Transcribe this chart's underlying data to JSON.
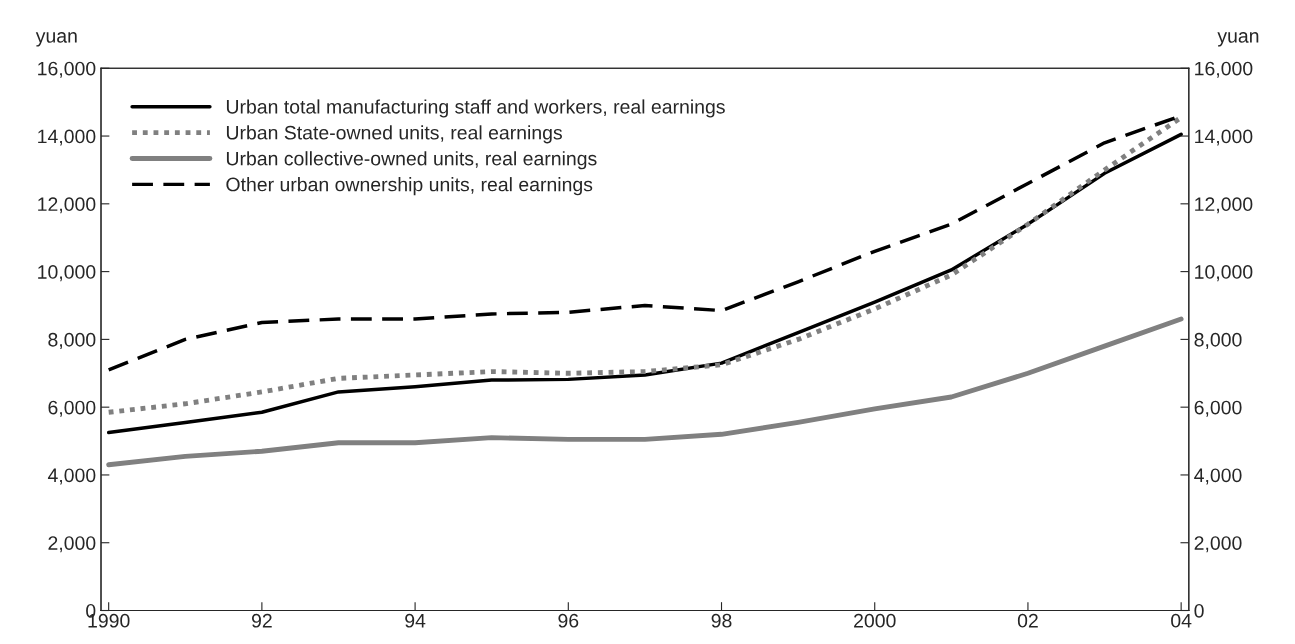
{
  "chart_data": {
    "type": "line",
    "ylabel": "yuan",
    "y2label": "yuan",
    "x": [
      1990,
      1991,
      1992,
      1993,
      1994,
      1995,
      1996,
      1997,
      1998,
      1999,
      2000,
      2001,
      2002,
      2003,
      2004
    ],
    "series": [
      {
        "name": "Urban total manufacturing staff and workers, real earnings",
        "color": "#000000",
        "line_style": "solid",
        "values": [
          5250,
          5550,
          5850,
          6450,
          6600,
          6800,
          6820,
          6950,
          7300,
          8200,
          9100,
          10050,
          11400,
          12900,
          14050
        ]
      },
      {
        "name": "Urban State-owned units, real earnings",
        "color": "#808080",
        "line_style": "dotted",
        "values": [
          5850,
          6100,
          6450,
          6850,
          6950,
          7050,
          7000,
          7050,
          7250,
          8000,
          8900,
          9900,
          11400,
          13000,
          14550
        ]
      },
      {
        "name": "Urban collective-owned units, real earnings",
        "color": "#808080",
        "line_style": "solid",
        "values": [
          4300,
          4550,
          4700,
          4950,
          4950,
          5100,
          5050,
          5050,
          5200,
          5550,
          5950,
          6300,
          7000,
          7800,
          8600
        ]
      },
      {
        "name": "Other urban ownership units, real earnings",
        "color": "#000000",
        "line_style": "dashed",
        "values": [
          7100,
          8000,
          8500,
          8600,
          8600,
          8750,
          8800,
          9000,
          8850,
          9700,
          10600,
          11400,
          12600,
          13800,
          14600
        ]
      }
    ],
    "xlim": [
      1989.9,
      2004.1
    ],
    "xticks": [
      1990,
      {
        "value": 1992,
        "label": "92"
      },
      {
        "value": 1994,
        "label": "94"
      },
      {
        "value": 1996,
        "label": "96"
      },
      {
        "value": 1998,
        "label": "98"
      },
      2000,
      {
        "value": 2002,
        "label": "02"
      },
      {
        "value": 2004,
        "label": "04"
      }
    ],
    "ylim": [
      0,
      16000
    ],
    "yticks": [
      0,
      {
        "value": 2000,
        "label": "2,000"
      },
      {
        "value": 4000,
        "label": "4,000"
      },
      {
        "value": 6000,
        "label": "6,000"
      },
      {
        "value": 8000,
        "label": "8,000"
      },
      {
        "value": 10000,
        "label": "10,000"
      },
      {
        "value": 12000,
        "label": "12,000"
      },
      {
        "value": 14000,
        "label": "14,000"
      },
      {
        "value": 16000,
        "label": "16,000"
      }
    ],
    "y2lim": [
      0,
      16000
    ],
    "y2ticks": [
      0,
      {
        "value": 2000,
        "label": "2,000"
      },
      {
        "value": 4000,
        "label": "4,000"
      },
      {
        "value": 6000,
        "label": "6,000"
      },
      {
        "value": 8000,
        "label": "8,000"
      },
      {
        "value": 10000,
        "label": "10,000"
      },
      {
        "value": 12000,
        "label": "12,000"
      },
      {
        "value": 14000,
        "label": "14,000"
      },
      {
        "value": 16000,
        "label": "16,000"
      }
    ],
    "legend": "top left",
    "grid": false,
    "marker": "none"
  }
}
